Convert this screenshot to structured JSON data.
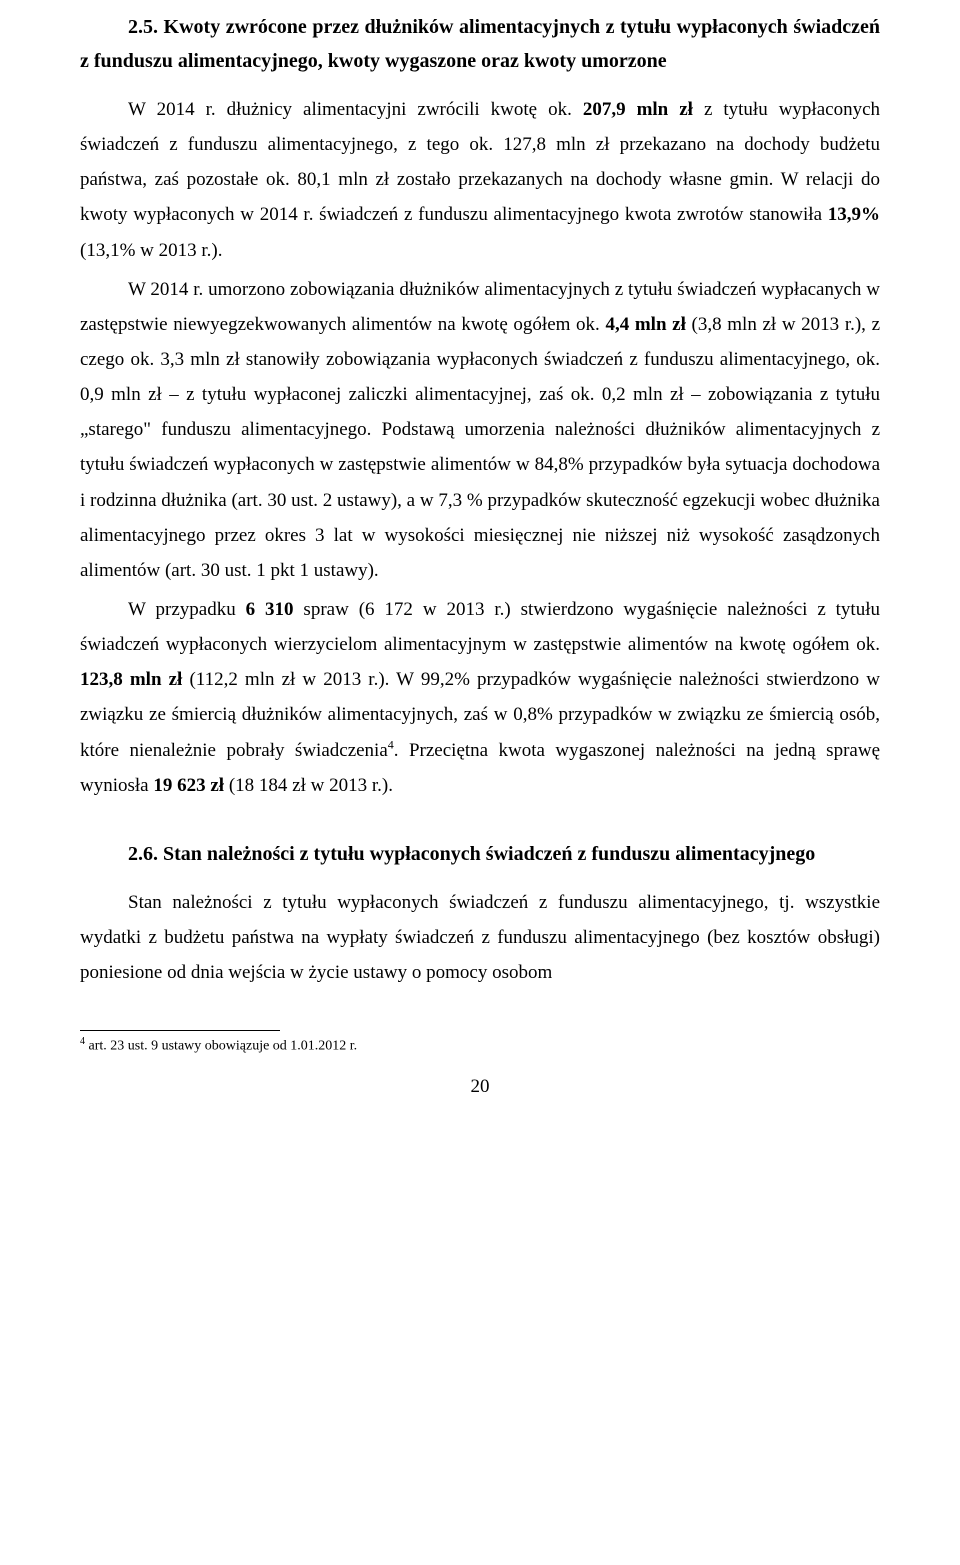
{
  "section25": {
    "heading": "2.5. Kwoty zwrócone przez dłużników alimentacyjnych z tytułu wypłaconych świadczeń z funduszu alimentacyjnego, kwoty wygaszone oraz kwoty umorzone",
    "para1_a": "W 2014 r. dłużnicy alimentacyjni zwrócili kwotę ok. ",
    "para1_b": "207,9 mln zł",
    "para1_c": " z tytułu wypłaconych świadczeń z funduszu alimentacyjnego, z tego ok. 127,8 mln zł przekazano na dochody budżetu państwa, zaś pozostałe ok. 80,1 mln zł zostało przekazanych na dochody własne gmin. W relacji do kwoty wypłaconych w 2014 r. świadczeń z funduszu alimentacyjnego kwota zwrotów stanowiła ",
    "para1_d": "13,9%",
    "para1_e": " (13,1% w 2013 r.).",
    "para2_a": "W 2014 r. umorzono zobowiązania dłużników alimentacyjnych z tytułu świadczeń wypłacanych w zastępstwie niewyegzekwowanych alimentów na kwotę ogółem ok. ",
    "para2_b": "4,4 mln zł",
    "para2_c": " (3,8 mln zł w 2013 r.), z czego ok. 3,3 mln zł stanowiły zobowiązania wypłaconych świadczeń z funduszu alimentacyjnego, ok. 0,9 mln zł – z tytułu wypłaconej zaliczki alimentacyjnej, zaś ok. 0,2 mln zł – zobowiązania z tytułu „starego\" funduszu alimentacyjnego. Podstawą umorzenia należności dłużników alimentacyjnych z tytułu świadczeń wypłaconych w zastępstwie alimentów w 84,8% przypadków była sytuacja dochodowa i rodzinna dłużnika (art. 30 ust. 2 ustawy), a w 7,3 % przypadków skuteczność egzekucji wobec dłużnika alimentacyjnego przez okres 3 lat w wysokości miesięcznej nie niższej niż wysokość zasądzonych alimentów (art. 30 ust. 1 pkt 1 ustawy).",
    "para3_a": "W przypadku ",
    "para3_b": "6 310",
    "para3_c": " spraw (6 172 w 2013 r.) stwierdzono wygaśnięcie należności z tytułu świadczeń wypłaconych wierzycielom alimentacyjnym w zastępstwie alimentów na kwotę ogółem ok. ",
    "para3_d": "123,8 mln zł",
    "para3_e": " (112,2 mln zł w 2013 r.). W 99,2% przypadków wygaśnięcie należności stwierdzono w związku ze śmiercią dłużników alimentacyjnych, zaś w 0,8% przypadków w związku ze śmiercią osób, które nienależnie pobrały świadczenia",
    "para3_f": ". Przeciętna kwota wygaszonej należności na jedną sprawę wyniosła ",
    "para3_g": "19 623 zł",
    "para3_h": " (18 184 zł w 2013 r.)."
  },
  "section26": {
    "heading": "2.6. Stan należności z tytułu wypłaconych świadczeń z funduszu alimentacyjnego",
    "para1": "Stan należności z tytułu wypłaconych świadczeń z funduszu alimentacyjnego, tj. wszystkie wydatki z budżetu państwa na wypłaty świadczeń z funduszu alimentacyjnego (bez kosztów obsługi) poniesione od dnia wejścia w życie ustawy o pomocy osobom"
  },
  "footnote": {
    "marker": "4",
    "text": " art. 23 ust. 9 ustawy obowiązuje od 1.01.2012 r."
  },
  "pageNumber": "20"
}
